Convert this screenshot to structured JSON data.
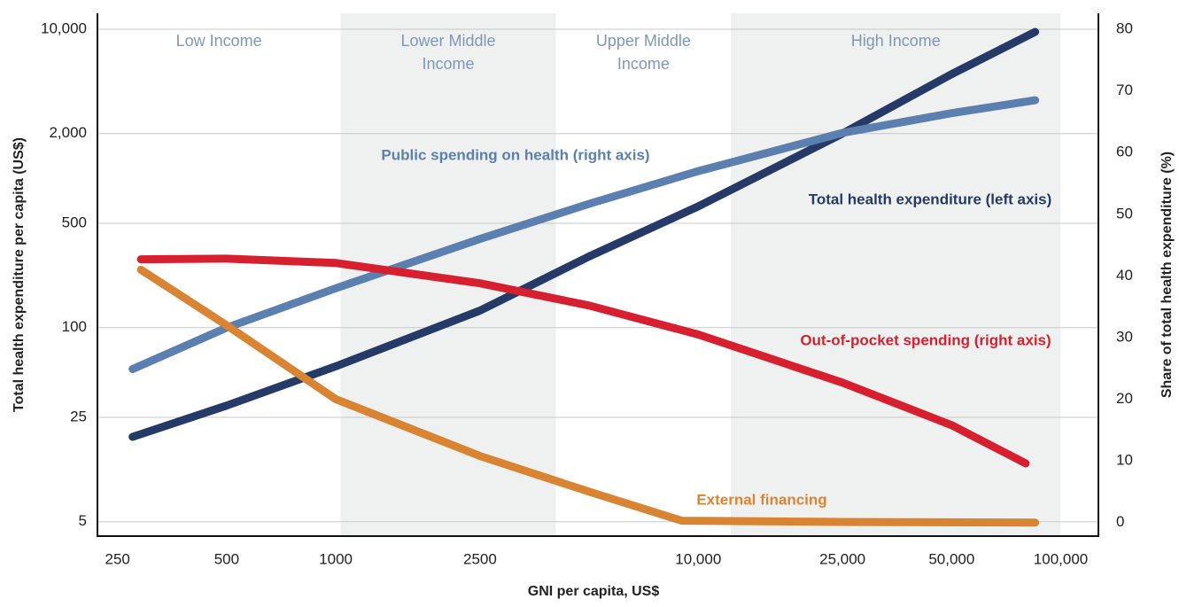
{
  "chart_data": {
    "type": "line",
    "x_label": "GNI per capita, US$",
    "y_label": "Total health expenditure per capita (US$)",
    "y2_label": "Share of total health expenditure (%)",
    "xscale": "log",
    "yscale": "log",
    "xlim": [
      220,
      127000
    ],
    "ylim": [
      4,
      12800
    ],
    "y2lim": [
      -2.2,
      82.6
    ],
    "xticks": [
      250,
      500,
      1000,
      2500,
      {
        "value": 10000,
        "label": "10,000"
      },
      {
        "value": 25000,
        "label": "25,000"
      },
      {
        "value": 50000,
        "label": "50,000"
      },
      {
        "value": 100000,
        "label": "100,000"
      }
    ],
    "yticks": [
      5,
      25,
      100,
      500,
      {
        "value": 2000,
        "label": "2,000"
      },
      {
        "value": 10000,
        "label": "10,000"
      }
    ],
    "y2ticks": [
      0,
      10,
      20,
      30,
      40,
      50,
      60,
      70,
      80
    ],
    "grid": true,
    "income_groups": [
      {
        "lines": [
          "Low Income"
        ],
        "start": 220,
        "end": 1030,
        "shaded": false
      },
      {
        "lines": [
          "Lower Middle",
          "Income"
        ],
        "start": 1030,
        "end": 4050,
        "shaded": true
      },
      {
        "lines": [
          "Upper Middle",
          "Income"
        ],
        "start": 4050,
        "end": 12300,
        "shaded": false
      },
      {
        "lines": [
          "High Income"
        ],
        "start": 12300,
        "end": 100000,
        "shaded": true
      }
    ],
    "band_color": "#eff1f1",
    "series": [
      {
        "name": "Total health expenditure (left axis)",
        "color": "#253a66",
        "axis": "y",
        "x": [
          275,
          500,
          1000,
          2500,
          5000,
          10000,
          25000,
          50000,
          85000
        ],
        "values": [
          18.5,
          30,
          55,
          130,
          300,
          650,
          2000,
          5000,
          9600
        ]
      },
      {
        "name": "Public spending on health (right axis)",
        "color": "#5b7fae",
        "axis": "y2",
        "x": [
          275,
          500,
          1000,
          2500,
          5000,
          10000,
          25000,
          50000,
          85000
        ],
        "values": [
          24.9,
          31.6,
          38,
          46,
          51.7,
          57,
          63.2,
          66.4,
          68.5
        ]
      },
      {
        "name": "Out-of-pocket spending (right axis)",
        "color": "#d7202f",
        "axis": "y2",
        "x": [
          290,
          500,
          1000,
          2500,
          5000,
          10000,
          25000,
          50000,
          80000
        ],
        "values": [
          42.7,
          42.8,
          42.1,
          38.8,
          35.2,
          30.5,
          22.7,
          15.8,
          9.6
        ]
      },
      {
        "name": "External financing",
        "color": "#d98432",
        "axis": "y2",
        "x": [
          290,
          500,
          1000,
          2500,
          5000,
          9000,
          25000,
          85000
        ],
        "values": [
          41,
          32,
          20,
          10.8,
          5,
          0.3,
          0.1,
          0
        ]
      }
    ]
  }
}
